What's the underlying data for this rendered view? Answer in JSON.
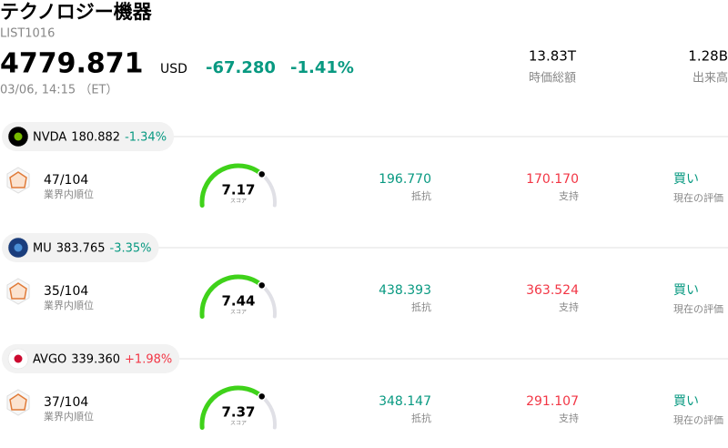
{
  "header": {
    "title": "テクノロジー機器",
    "code": "LIST1016",
    "price": "4779.871",
    "currency": "USD",
    "change": "-67.280",
    "change_pct": "-1.41%",
    "time": "03/06, 14:15 （ET）",
    "stats": [
      {
        "value": "13.83T",
        "label": "時価総額"
      },
      {
        "value": "1.28B",
        "label": "出来高"
      }
    ]
  },
  "stocks": [
    {
      "ticker": "NVDA",
      "price": "180.882",
      "change": "-1.34%",
      "rank": "47/104",
      "rank_label": "業界内順位",
      "score": "7.17",
      "score_label": "スコア",
      "resistance": "196.770",
      "resistance_label": "抵抗",
      "support": "170.170",
      "support_label": "支持",
      "rating": "買い",
      "rating_label": "現在の評価"
    },
    {
      "ticker": "MU",
      "price": "383.765",
      "change": "-3.35%",
      "rank": "35/104",
      "rank_label": "業界内順位",
      "score": "7.44",
      "score_label": "スコア",
      "resistance": "438.393",
      "resistance_label": "抵抗",
      "support": "363.524",
      "support_label": "支持",
      "rating": "買い",
      "rating_label": "現在の評価"
    },
    {
      "ticker": "AVGO",
      "price": "339.360",
      "change": "+1.98%",
      "rank": "37/104",
      "rank_label": "業界内順位",
      "score": "7.37",
      "score_label": "スコア",
      "resistance": "348.147",
      "resistance_label": "抵抗",
      "support": "291.107",
      "support_label": "支持",
      "rating": "買い",
      "rating_label": "現在の評価"
    }
  ]
}
